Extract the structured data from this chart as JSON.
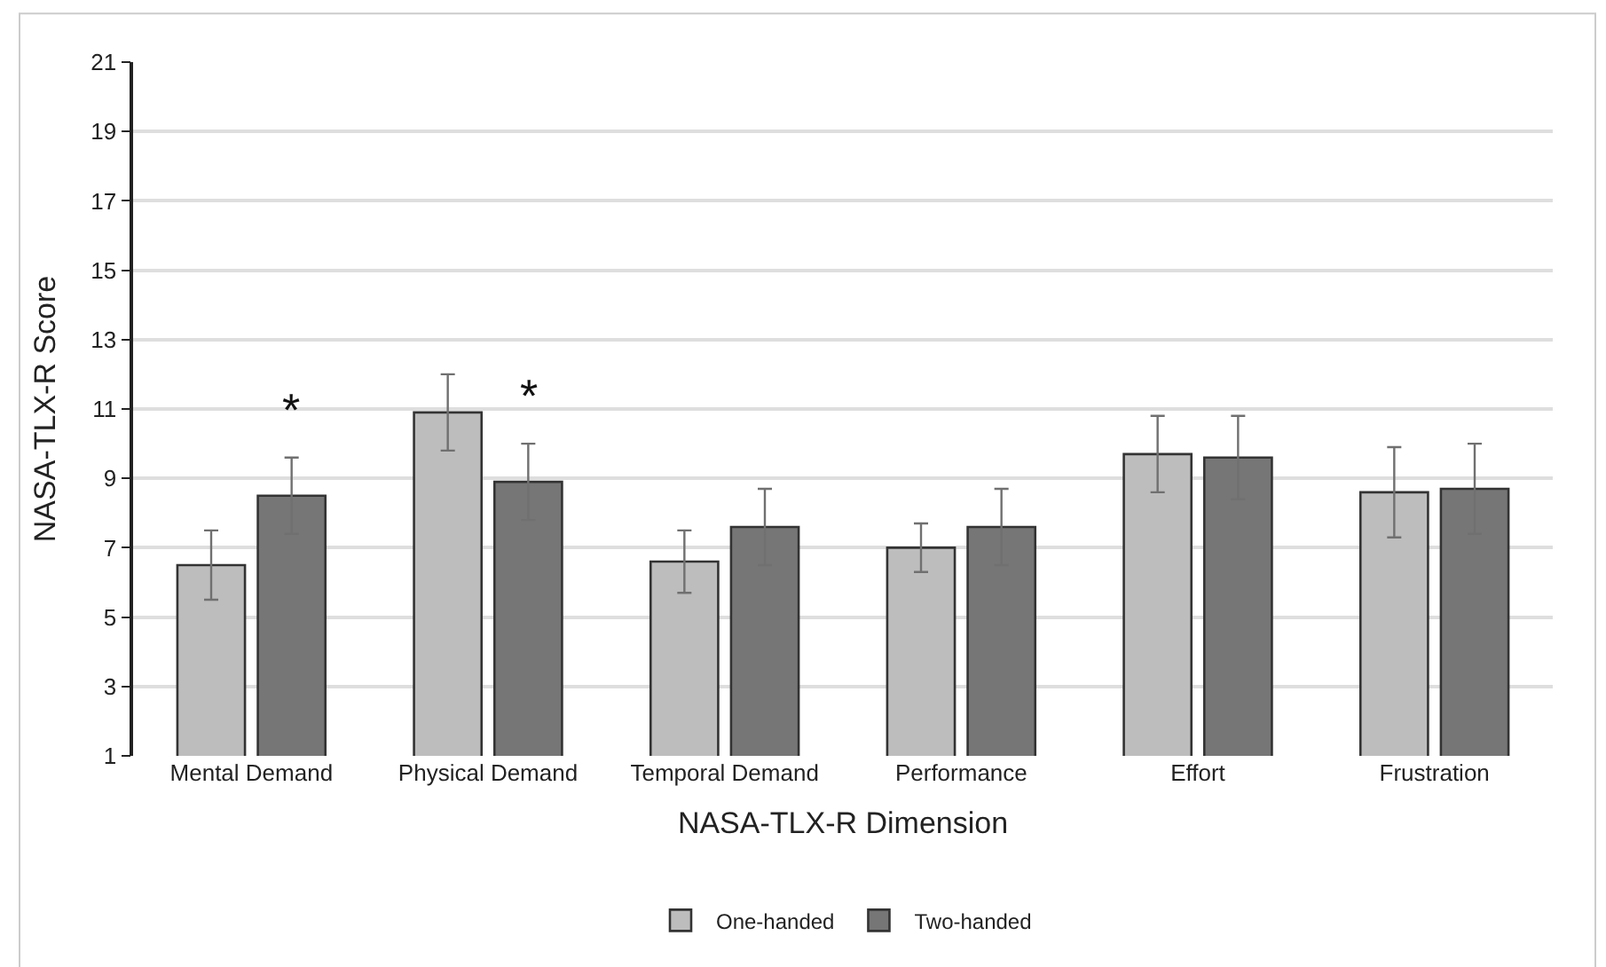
{
  "chart_data": {
    "type": "bar",
    "xlabel": "NASA-TLX-R Dimension",
    "ylabel": "NASA-TLX-R Score",
    "categories": [
      "Mental Demand",
      "Physical Demand",
      "Temporal Demand",
      "Performance",
      "Effort",
      "Frustration"
    ],
    "series": [
      {
        "name": "One-handed",
        "color": "#bdbdbd",
        "values": [
          6.5,
          10.9,
          6.6,
          7.0,
          9.7,
          8.6
        ],
        "errors": [
          1.0,
          1.1,
          0.9,
          0.7,
          1.1,
          1.3
        ]
      },
      {
        "name": "Two-handed",
        "color": "#767676",
        "values": [
          8.5,
          8.9,
          7.6,
          7.6,
          9.6,
          8.7
        ],
        "errors": [
          1.1,
          1.1,
          1.1,
          1.1,
          1.2,
          1.3
        ],
        "value_labels": [
          "*",
          "*",
          null,
          null,
          null,
          null
        ]
      }
    ],
    "ylim": [
      1,
      21
    ],
    "yticks": [
      1,
      3,
      5,
      7,
      9,
      11,
      13,
      15,
      17,
      19,
      21
    ],
    "grid": "y",
    "legend": "bottom"
  }
}
